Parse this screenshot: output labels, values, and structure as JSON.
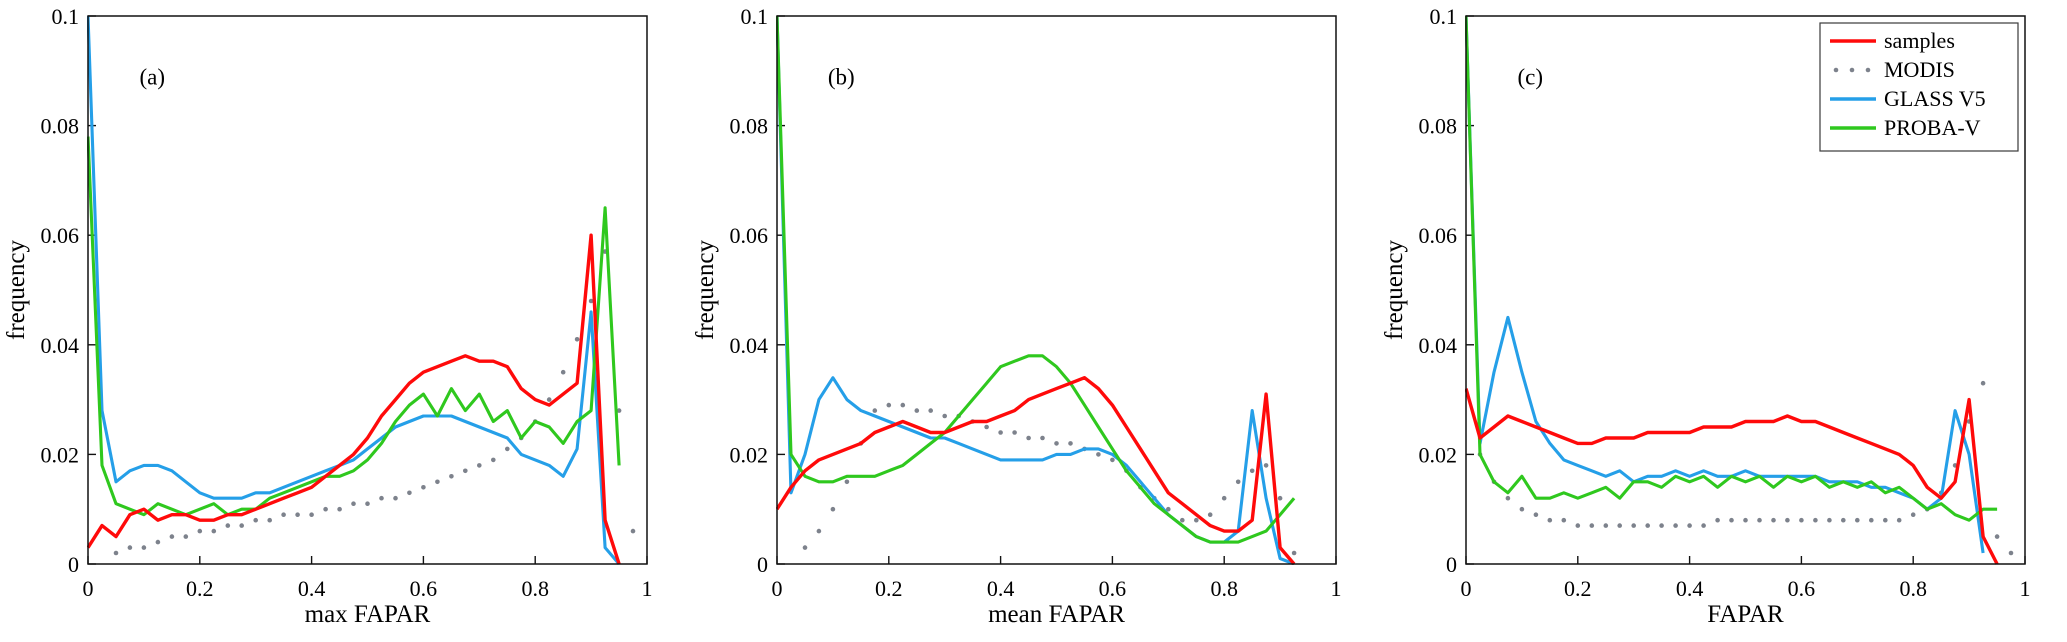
{
  "figure": {
    "background": "#ffffff",
    "axis_color": "#111111",
    "text_color": "#000000"
  },
  "legend": {
    "position": "top-right-panel-c",
    "entries": [
      {
        "label": "samples",
        "style": "line",
        "color": "#ff0a0a"
      },
      {
        "label": "MODIS",
        "style": "dots",
        "color": "#7d828c"
      },
      {
        "label": "GLASS V5",
        "style": "line",
        "color": "#259fe8"
      },
      {
        "label": "PROBA-V",
        "style": "line",
        "color": "#2fc81e"
      }
    ]
  },
  "chart_data": [
    {
      "type": "line",
      "id": "a",
      "panel_label": "(a)",
      "xlabel": "max FAPAR",
      "ylabel": "frequency",
      "xlim": [
        0,
        1
      ],
      "ylim": [
        0,
        0.1
      ],
      "xticks": [
        0,
        0.2,
        0.4,
        0.6,
        0.8,
        1
      ],
      "xtick_labels": [
        "0",
        "0.2",
        "0.4",
        "0.6",
        "0.8",
        "1"
      ],
      "yticks": [
        0,
        0.02,
        0.04,
        0.06,
        0.08,
        0.1
      ],
      "ytick_labels": [
        "0",
        "0.02",
        "0.04",
        "0.06",
        "0.08",
        "0.1"
      ],
      "grid": false,
      "show_legend": false,
      "draw_order": [
        1,
        2,
        3,
        0
      ],
      "series": [
        {
          "name": "samples",
          "style": "line",
          "color": "#ff0a0a",
          "x0": 0,
          "dx": 0.025,
          "y": [
            0.003,
            0.007,
            0.005,
            0.009,
            0.01,
            0.008,
            0.009,
            0.009,
            0.008,
            0.008,
            0.009,
            0.009,
            0.01,
            0.011,
            0.012,
            0.013,
            0.014,
            0.016,
            0.018,
            0.02,
            0.023,
            0.027,
            0.03,
            0.033,
            0.035,
            0.036,
            0.037,
            0.038,
            0.037,
            0.037,
            0.036,
            0.032,
            0.03,
            0.029,
            0.031,
            0.033,
            0.06,
            0.008,
            0.0
          ]
        },
        {
          "name": "MODIS",
          "style": "dots",
          "color": "#7d828c",
          "x0": 0.05,
          "dx": 0.025,
          "y": [
            0.002,
            0.003,
            0.003,
            0.004,
            0.005,
            0.005,
            0.006,
            0.006,
            0.007,
            0.007,
            0.008,
            0.008,
            0.009,
            0.009,
            0.009,
            0.01,
            0.01,
            0.011,
            0.011,
            0.012,
            0.012,
            0.013,
            0.014,
            0.015,
            0.016,
            0.017,
            0.018,
            0.019,
            0.021,
            0.023,
            0.026,
            0.03,
            0.035,
            0.041,
            0.048,
            0.057,
            0.028,
            0.006
          ]
        },
        {
          "name": "GLASS V5",
          "style": "line",
          "color": "#259fe8",
          "x0": 0,
          "dx": 0.025,
          "y": [
            0.1,
            0.028,
            0.015,
            0.017,
            0.018,
            0.018,
            0.017,
            0.015,
            0.013,
            0.012,
            0.012,
            0.012,
            0.013,
            0.013,
            0.014,
            0.015,
            0.016,
            0.017,
            0.018,
            0.019,
            0.021,
            0.023,
            0.025,
            0.026,
            0.027,
            0.027,
            0.027,
            0.026,
            0.025,
            0.024,
            0.023,
            0.02,
            0.019,
            0.018,
            0.016,
            0.021,
            0.046,
            0.003,
            0.0
          ]
        },
        {
          "name": "PROBA-V",
          "style": "line",
          "color": "#2fc81e",
          "x0": 0,
          "dx": 0.025,
          "y": [
            0.078,
            0.018,
            0.011,
            0.01,
            0.009,
            0.011,
            0.01,
            0.009,
            0.01,
            0.011,
            0.009,
            0.01,
            0.01,
            0.012,
            0.013,
            0.014,
            0.015,
            0.016,
            0.016,
            0.017,
            0.019,
            0.022,
            0.026,
            0.029,
            0.031,
            0.027,
            0.032,
            0.028,
            0.031,
            0.026,
            0.028,
            0.023,
            0.026,
            0.025,
            0.022,
            0.026,
            0.028,
            0.065,
            0.018
          ]
        }
      ]
    },
    {
      "type": "line",
      "id": "b",
      "panel_label": "(b)",
      "xlabel": "mean FAPAR",
      "ylabel": "frequency",
      "xlim": [
        0,
        1
      ],
      "ylim": [
        0,
        0.1
      ],
      "xticks": [
        0,
        0.2,
        0.4,
        0.6,
        0.8,
        1
      ],
      "xtick_labels": [
        "0",
        "0.2",
        "0.4",
        "0.6",
        "0.8",
        "1"
      ],
      "yticks": [
        0,
        0.02,
        0.04,
        0.06,
        0.08,
        0.1
      ],
      "ytick_labels": [
        "0",
        "0.02",
        "0.04",
        "0.06",
        "0.08",
        "0.1"
      ],
      "grid": false,
      "show_legend": false,
      "draw_order": [
        1,
        2,
        3,
        0
      ],
      "series": [
        {
          "name": "samples",
          "style": "line",
          "color": "#ff0a0a",
          "x0": 0,
          "dx": 0.025,
          "y": [
            0.01,
            0.014,
            0.017,
            0.019,
            0.02,
            0.021,
            0.022,
            0.024,
            0.025,
            0.026,
            0.025,
            0.024,
            0.024,
            0.025,
            0.026,
            0.026,
            0.027,
            0.028,
            0.03,
            0.031,
            0.032,
            0.033,
            0.034,
            0.032,
            0.029,
            0.025,
            0.021,
            0.017,
            0.013,
            0.011,
            0.009,
            0.007,
            0.006,
            0.006,
            0.008,
            0.031,
            0.003,
            0.0
          ]
        },
        {
          "name": "MODIS",
          "style": "dots",
          "color": "#7d828c",
          "x0": 0.05,
          "dx": 0.025,
          "y": [
            0.003,
            0.006,
            0.01,
            0.015,
            0.022,
            0.028,
            0.029,
            0.029,
            0.028,
            0.028,
            0.027,
            0.027,
            0.026,
            0.025,
            0.024,
            0.024,
            0.023,
            0.023,
            0.022,
            0.022,
            0.021,
            0.02,
            0.019,
            0.017,
            0.014,
            0.012,
            0.01,
            0.008,
            0.008,
            0.009,
            0.012,
            0.015,
            0.017,
            0.018,
            0.012,
            0.002
          ]
        },
        {
          "name": "GLASS V5",
          "style": "line",
          "color": "#259fe8",
          "x0": 0,
          "dx": 0.025,
          "y": [
            0.1,
            0.013,
            0.02,
            0.03,
            0.034,
            0.03,
            0.028,
            0.027,
            0.026,
            0.025,
            0.024,
            0.023,
            0.023,
            0.022,
            0.021,
            0.02,
            0.019,
            0.019,
            0.019,
            0.019,
            0.02,
            0.02,
            0.021,
            0.021,
            0.02,
            0.018,
            0.015,
            0.012,
            0.009,
            0.007,
            0.005,
            0.004,
            0.004,
            0.006,
            0.028,
            0.012,
            0.001,
            0.0
          ]
        },
        {
          "name": "PROBA-V",
          "style": "line",
          "color": "#2fc81e",
          "x0": 0,
          "dx": 0.025,
          "y": [
            0.1,
            0.02,
            0.016,
            0.015,
            0.015,
            0.016,
            0.016,
            0.016,
            0.017,
            0.018,
            0.02,
            0.022,
            0.024,
            0.027,
            0.03,
            0.033,
            0.036,
            0.037,
            0.038,
            0.038,
            0.036,
            0.033,
            0.029,
            0.025,
            0.021,
            0.017,
            0.014,
            0.011,
            0.009,
            0.007,
            0.005,
            0.004,
            0.004,
            0.004,
            0.005,
            0.006,
            0.009,
            0.012
          ]
        }
      ]
    },
    {
      "type": "line",
      "id": "c",
      "panel_label": "(c)",
      "xlabel": "FAPAR",
      "ylabel": "frequency",
      "xlim": [
        0,
        1
      ],
      "ylim": [
        0,
        0.1
      ],
      "xticks": [
        0,
        0.2,
        0.4,
        0.6,
        0.8,
        1
      ],
      "xtick_labels": [
        "0",
        "0.2",
        "0.4",
        "0.6",
        "0.8",
        "1"
      ],
      "yticks": [
        0,
        0.02,
        0.04,
        0.06,
        0.08,
        0.1
      ],
      "ytick_labels": [
        "0",
        "0.02",
        "0.04",
        "0.06",
        "0.08",
        "0.1"
      ],
      "grid": false,
      "show_legend": true,
      "draw_order": [
        1,
        2,
        3,
        0
      ],
      "series": [
        {
          "name": "samples",
          "style": "line",
          "color": "#ff0a0a",
          "x0": 0,
          "dx": 0.025,
          "y": [
            0.032,
            0.023,
            0.025,
            0.027,
            0.026,
            0.025,
            0.024,
            0.023,
            0.022,
            0.022,
            0.023,
            0.023,
            0.023,
            0.024,
            0.024,
            0.024,
            0.024,
            0.025,
            0.025,
            0.025,
            0.026,
            0.026,
            0.026,
            0.027,
            0.026,
            0.026,
            0.025,
            0.024,
            0.023,
            0.022,
            0.021,
            0.02,
            0.018,
            0.014,
            0.012,
            0.015,
            0.03,
            0.005,
            0.0
          ]
        },
        {
          "name": "MODIS",
          "style": "dots",
          "color": "#7d828c",
          "x0": 0.025,
          "dx": 0.025,
          "y": [
            0.02,
            0.015,
            0.012,
            0.01,
            0.009,
            0.008,
            0.008,
            0.007,
            0.007,
            0.007,
            0.007,
            0.007,
            0.007,
            0.007,
            0.007,
            0.007,
            0.007,
            0.008,
            0.008,
            0.008,
            0.008,
            0.008,
            0.008,
            0.008,
            0.008,
            0.008,
            0.008,
            0.008,
            0.008,
            0.008,
            0.008,
            0.009,
            0.01,
            0.013,
            0.018,
            0.026,
            0.033,
            0.005,
            0.002
          ]
        },
        {
          "name": "GLASS V5",
          "style": "line",
          "color": "#259fe8",
          "x0": 0,
          "dx": 0.025,
          "y": [
            0.1,
            0.022,
            0.035,
            0.045,
            0.035,
            0.026,
            0.022,
            0.019,
            0.018,
            0.017,
            0.016,
            0.017,
            0.015,
            0.016,
            0.016,
            0.017,
            0.016,
            0.017,
            0.016,
            0.016,
            0.017,
            0.016,
            0.016,
            0.016,
            0.016,
            0.016,
            0.015,
            0.015,
            0.015,
            0.014,
            0.014,
            0.013,
            0.012,
            0.01,
            0.012,
            0.028,
            0.02,
            0.002
          ]
        },
        {
          "name": "PROBA-V",
          "style": "line",
          "color": "#2fc81e",
          "x0": 0,
          "dx": 0.025,
          "y": [
            0.1,
            0.02,
            0.015,
            0.013,
            0.016,
            0.012,
            0.012,
            0.013,
            0.012,
            0.013,
            0.014,
            0.012,
            0.015,
            0.015,
            0.014,
            0.016,
            0.015,
            0.016,
            0.014,
            0.016,
            0.015,
            0.016,
            0.014,
            0.016,
            0.015,
            0.016,
            0.014,
            0.015,
            0.014,
            0.015,
            0.013,
            0.014,
            0.012,
            0.01,
            0.011,
            0.009,
            0.008,
            0.01,
            0.01
          ]
        }
      ]
    }
  ]
}
